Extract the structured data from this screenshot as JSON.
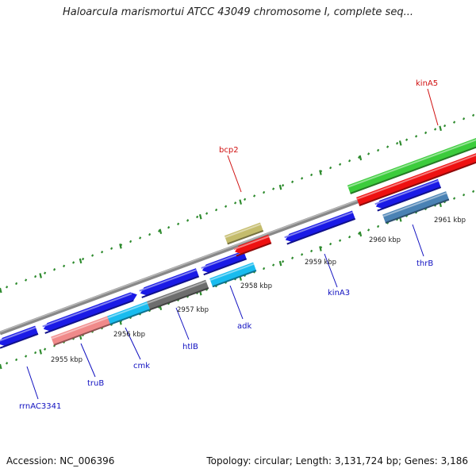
{
  "title": "Haloarcula marismortui ATCC 43049 chromosome I, complete seq...",
  "footer": {
    "accession": "Accession: NC_006396",
    "topology": "Topology: circular; Length: 3,131,724 bp; Genes: 3,186"
  },
  "colors": {
    "backbone": "#8a8a8a",
    "tick": "#2e8b2e",
    "label_blue": "#1010c0",
    "label_red": "#d01010",
    "gene_blue": "#1a1ae6",
    "gene_red": "#ee1111",
    "gene_green": "#3ccc3c",
    "gene_salmon": "#f08a8a",
    "gene_cyan": "#19bcef",
    "gene_gray": "#6e6e6e",
    "gene_khaki": "#c4bc6c",
    "gene_steel": "#4a82b4"
  },
  "scale_labels": [
    "2955 kbp",
    "2956 kbp",
    "2957 kbp",
    "2958 kbp",
    "2959 kbp",
    "2960 kbp",
    "2961 kbp"
  ],
  "gene_labels": [
    "rrnAC3341",
    "truB",
    "cmk",
    "htlB",
    "adk",
    "kinA3",
    "thrB",
    "bcp2",
    "kinA5"
  ]
}
